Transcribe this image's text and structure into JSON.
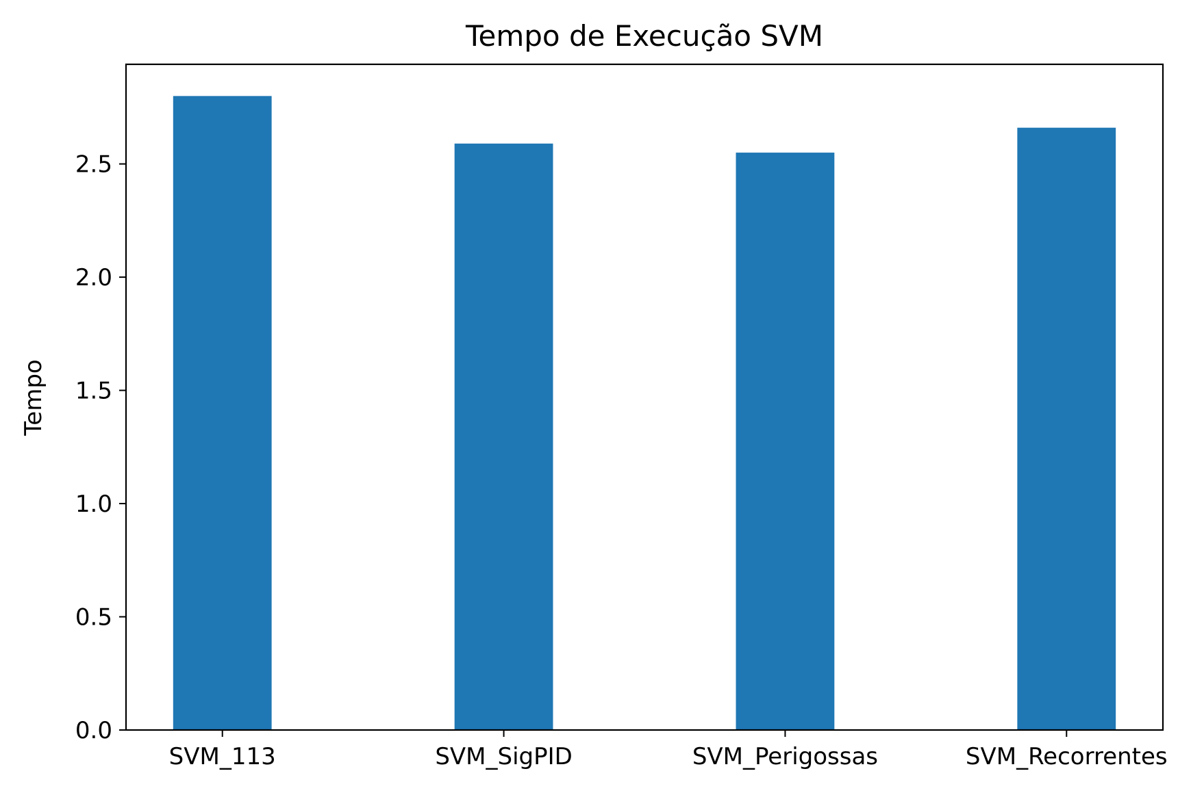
{
  "chart_data": {
    "type": "bar",
    "title": "Tempo de Execução SVM",
    "xlabel": "",
    "ylabel": "Tempo",
    "categories": [
      "SVM_113",
      "SVM_SigPID",
      "SVM_Perigossas",
      "SVM_Recorrentes"
    ],
    "values": [
      2.8,
      2.59,
      2.55,
      2.66
    ],
    "ylim": [
      0,
      2.94
    ],
    "yticks": [
      0.0,
      0.5,
      1.0,
      1.5,
      2.0,
      2.5
    ],
    "ytick_labels": [
      "0.0",
      "0.5",
      "1.0",
      "1.5",
      "2.0",
      "2.5"
    ],
    "grid": false,
    "legend": false,
    "colors": {
      "bar": "#1f77b4",
      "axis": "#000000",
      "background": "#ffffff"
    }
  }
}
